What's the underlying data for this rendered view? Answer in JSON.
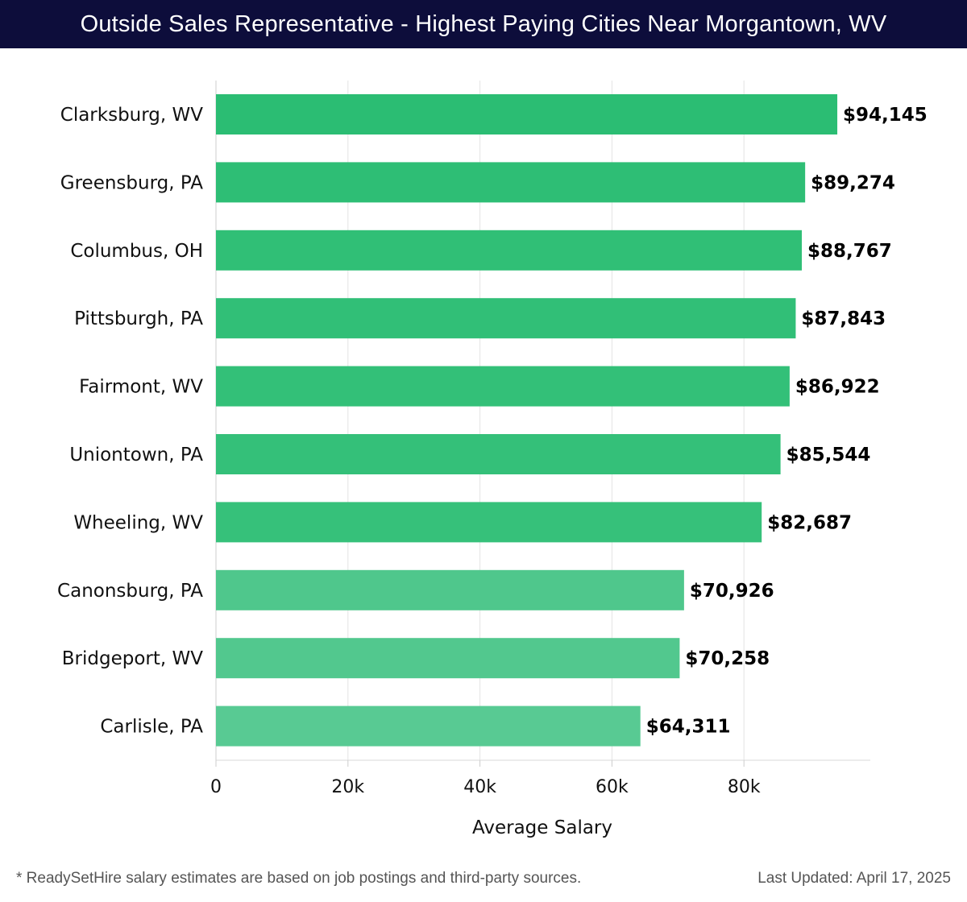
{
  "header": {
    "title": "Outside Sales Representative - Highest Paying Cities Near Morgantown, WV"
  },
  "chart_data": {
    "type": "bar",
    "orientation": "horizontal",
    "title": "Outside Sales Representative - Highest Paying Cities Near Morgantown, WV",
    "xlabel": "Average Salary",
    "ylabel": "",
    "xlim": [
      0,
      99000
    ],
    "xticks": [
      0,
      20000,
      40000,
      60000,
      80000
    ],
    "xtick_labels": [
      "0",
      "20k",
      "40k",
      "60k",
      "80k"
    ],
    "grid": true,
    "categories": [
      "Clarksburg, WV",
      "Greensburg, PA",
      "Columbus, OH",
      "Pittsburgh, PA",
      "Fairmont, WV",
      "Uniontown, PA",
      "Wheeling, WV",
      "Canonsburg, PA",
      "Bridgeport, WV",
      "Carlisle, PA"
    ],
    "values": [
      94145,
      89274,
      88767,
      87843,
      86922,
      85544,
      82687,
      70926,
      70258,
      64311
    ],
    "value_labels": [
      "$94,145",
      "$89,274",
      "$88,767",
      "$87,843",
      "$86,922",
      "$85,544",
      "$82,687",
      "$70,926",
      "$70,258",
      "$64,311"
    ],
    "colors": [
      "#2bbd73",
      "#2ebe75",
      "#30bf76",
      "#31bf77",
      "#33c078",
      "#34c079",
      "#36c17a",
      "#4fc78c",
      "#52c88e",
      "#58ca93"
    ]
  },
  "footer": {
    "note": "* ReadySetHire salary estimates are based on job postings and third-party sources.",
    "updated": "Last Updated: April 17, 2025"
  }
}
